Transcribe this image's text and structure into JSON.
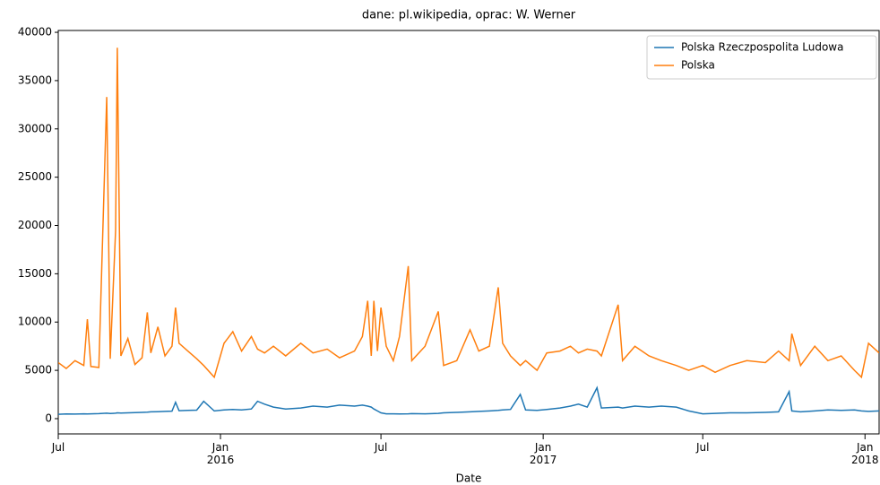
{
  "chart_data": {
    "type": "line",
    "title": "dane: pl.wikipedia, oprac: W. Werner",
    "x_label": "Date",
    "x": [
      "2015-07-01",
      "2015-07-10",
      "2015-07-20",
      "2015-07-30",
      "2015-08-03",
      "2015-08-07",
      "2015-08-16",
      "2015-08-25",
      "2015-08-29",
      "2015-09-04",
      "2015-09-06",
      "2015-09-10",
      "2015-09-18",
      "2015-09-26",
      "2015-10-04",
      "2015-10-10",
      "2015-10-14",
      "2015-10-22",
      "2015-10-30",
      "2015-11-07",
      "2015-11-11",
      "2015-11-15",
      "2015-11-25",
      "2015-12-05",
      "2015-12-13",
      "2015-12-25",
      "2016-01-05",
      "2016-01-15",
      "2016-01-25",
      "2016-02-05",
      "2016-02-12",
      "2016-02-20",
      "2016-03-01",
      "2016-03-15",
      "2016-04-01",
      "2016-04-15",
      "2016-05-01",
      "2016-05-15",
      "2016-06-01",
      "2016-06-10",
      "2016-06-16",
      "2016-06-20",
      "2016-06-23",
      "2016-06-27",
      "2016-07-01",
      "2016-07-07",
      "2016-07-15",
      "2016-07-22",
      "2016-08-01",
      "2016-08-05",
      "2016-08-20",
      "2016-09-04",
      "2016-09-10",
      "2016-09-25",
      "2016-10-10",
      "2016-10-20",
      "2016-11-01",
      "2016-11-11",
      "2016-11-16",
      "2016-11-25",
      "2016-12-06",
      "2016-12-12",
      "2016-12-25",
      "2017-01-05",
      "2017-01-20",
      "2017-02-01",
      "2017-02-10",
      "2017-02-20",
      "2017-03-03",
      "2017-03-08",
      "2017-03-27",
      "2017-04-01",
      "2017-04-15",
      "2017-05-01",
      "2017-05-15",
      "2017-06-01",
      "2017-06-15",
      "2017-07-01",
      "2017-07-15",
      "2017-08-01",
      "2017-08-20",
      "2017-09-10",
      "2017-09-25",
      "2017-10-07",
      "2017-10-10",
      "2017-10-20",
      "2017-11-05",
      "2017-11-20",
      "2017-12-05",
      "2017-12-20",
      "2017-12-28",
      "2018-01-05",
      "2018-01-17"
    ],
    "series": [
      {
        "name": "Polska Rzeczpospolita Ludowa",
        "color": "#1f77b4",
        "values": [
          450,
          480,
          470,
          500,
          480,
          500,
          520,
          560,
          540,
          560,
          600,
          580,
          600,
          620,
          650,
          680,
          700,
          720,
          750,
          780,
          1700,
          820,
          850,
          880,
          1800,
          800,
          900,
          950,
          900,
          1000,
          1800,
          1500,
          1200,
          1000,
          1100,
          1300,
          1200,
          1400,
          1300,
          1400,
          1300,
          1200,
          1000,
          800,
          600,
          500,
          500,
          480,
          500,
          520,
          500,
          550,
          600,
          650,
          700,
          750,
          800,
          850,
          900,
          950,
          2500,
          900,
          850,
          950,
          1100,
          1300,
          1500,
          1200,
          3200,
          1100,
          1200,
          1100,
          1300,
          1200,
          1300,
          1200,
          800,
          500,
          550,
          600,
          600,
          650,
          700,
          2800,
          800,
          700,
          800,
          900,
          850,
          900,
          800,
          750,
          800
        ]
      },
      {
        "name": "Polska",
        "color": "#ff7f0e",
        "values": [
          5800,
          5200,
          6000,
          5500,
          10300,
          5400,
          5300,
          33300,
          6200,
          19500,
          38400,
          6500,
          8300,
          5600,
          6300,
          11000,
          6800,
          9500,
          6500,
          7500,
          11500,
          7800,
          7000,
          6200,
          5500,
          4300,
          7800,
          9000,
          7000,
          8500,
          7200,
          6800,
          7500,
          6500,
          7800,
          6800,
          7200,
          6300,
          7000,
          8500,
          12200,
          6500,
          12200,
          7000,
          11500,
          7500,
          6000,
          8500,
          15800,
          6000,
          7500,
          11100,
          5500,
          6000,
          9200,
          7000,
          7500,
          13600,
          7800,
          6500,
          5500,
          6000,
          5000,
          6800,
          7000,
          7500,
          6800,
          7200,
          7000,
          6500,
          11800,
          6000,
          7500,
          6500,
          6000,
          5500,
          5000,
          5500,
          4800,
          5500,
          6000,
          5800,
          7000,
          6000,
          8800,
          5500,
          7500,
          6000,
          6500,
          5000,
          4300,
          7800,
          6800
        ]
      }
    ],
    "xlim": [
      "2015-07-01",
      "2018-01-17"
    ],
    "xticks": [
      {
        "value": "2015-07-01",
        "label": "Jul"
      },
      {
        "value": "2016-01-01",
        "label": "Jan\n2016"
      },
      {
        "value": "2016-07-01",
        "label": "Jul"
      },
      {
        "value": "2017-01-01",
        "label": "Jan\n2017"
      },
      {
        "value": "2017-07-01",
        "label": "Jul"
      },
      {
        "value": "2018-01-01",
        "label": "Jan\n2018"
      }
    ],
    "ylim": [
      -1580,
      40190
    ],
    "yticks": [
      0,
      5000,
      10000,
      15000,
      20000,
      25000,
      30000,
      35000,
      40000
    ],
    "legend": "upper right"
  }
}
